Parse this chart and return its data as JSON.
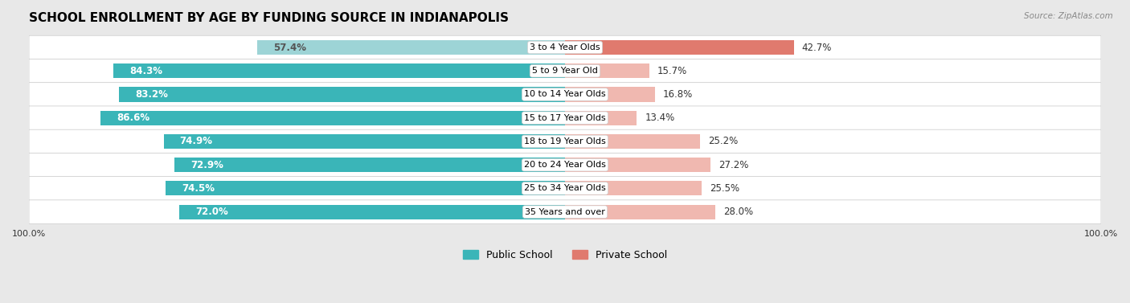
{
  "title": "SCHOOL ENROLLMENT BY AGE BY FUNDING SOURCE IN INDIANAPOLIS",
  "source": "Source: ZipAtlas.com",
  "categories": [
    "3 to 4 Year Olds",
    "5 to 9 Year Old",
    "10 to 14 Year Olds",
    "15 to 17 Year Olds",
    "18 to 19 Year Olds",
    "20 to 24 Year Olds",
    "25 to 34 Year Olds",
    "35 Years and over"
  ],
  "public_values": [
    57.4,
    84.3,
    83.2,
    86.6,
    74.9,
    72.9,
    74.5,
    72.0
  ],
  "private_values": [
    42.7,
    15.7,
    16.8,
    13.4,
    25.2,
    27.2,
    25.5,
    28.0
  ],
  "public_colors": [
    "#9dd4d6",
    "#3ab5b8",
    "#3ab5b8",
    "#3ab5b8",
    "#3ab5b8",
    "#3ab5b8",
    "#3ab5b8",
    "#3ab5b8"
  ],
  "private_colors": [
    "#e07a6e",
    "#f0b8b0",
    "#f0b8b0",
    "#f0b8b0",
    "#f0b8b0",
    "#f0b8b0",
    "#f0b8b0",
    "#f0b8b0"
  ],
  "public_label_color": [
    "#555555",
    "#ffffff",
    "#ffffff",
    "#ffffff",
    "#ffffff",
    "#ffffff",
    "#ffffff",
    "#ffffff"
  ],
  "bar_height": 0.62,
  "background_color": "#e8e8e8",
  "label_fontsize": 8.5,
  "title_fontsize": 11,
  "legend_fontsize": 9
}
